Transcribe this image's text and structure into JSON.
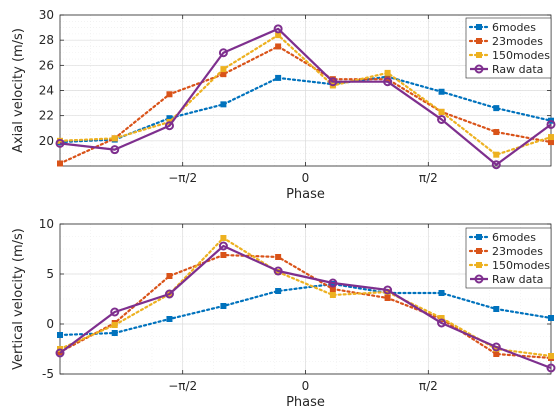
{
  "chart_data": [
    {
      "type": "line",
      "xlabel": "Phase",
      "ylabel": "Axial velocity (m/s)",
      "ylim": [
        18,
        30
      ],
      "xlim": [
        -3.14,
        3.14
      ],
      "yticks": [
        20,
        22,
        24,
        26,
        28,
        30
      ],
      "xticks": [
        {
          "value": -1.5708,
          "label": "−π/2"
        },
        {
          "value": 0,
          "label": "0"
        },
        {
          "value": 1.5708,
          "label": "π/2"
        }
      ],
      "grid": true,
      "legend": "top-right",
      "x": [
        -3.14,
        -2.44,
        -1.74,
        -1.05,
        -0.35,
        0.35,
        1.05,
        1.74,
        2.44,
        3.14
      ],
      "series": [
        {
          "name": "6modes",
          "values": [
            19.9,
            20.1,
            21.8,
            22.9,
            25.0,
            24.5,
            25.1,
            23.9,
            22.6,
            21.6
          ],
          "color": "#0072BD",
          "style": "dotted",
          "marker": "square"
        },
        {
          "name": "23modes",
          "values": [
            18.2,
            20.2,
            23.7,
            25.3,
            27.5,
            24.9,
            24.9,
            22.3,
            20.7,
            19.9
          ],
          "color": "#D95319",
          "style": "dotted",
          "marker": "square"
        },
        {
          "name": "150modes",
          "values": [
            20.0,
            20.2,
            21.5,
            25.7,
            28.4,
            24.4,
            25.4,
            22.3,
            18.9,
            20.3
          ],
          "color": "#EDB120",
          "style": "dotted",
          "marker": "square"
        },
        {
          "name": "Raw data",
          "values": [
            19.8,
            19.3,
            21.2,
            27.0,
            28.9,
            24.7,
            24.7,
            21.7,
            18.1,
            21.3
          ],
          "color": "#7E2F8E",
          "style": "solid",
          "marker": "circle"
        }
      ]
    },
    {
      "type": "line",
      "xlabel": "Phase",
      "ylabel": "Vertical velocity (m/s)",
      "ylim": [
        -5,
        10
      ],
      "xlim": [
        -3.14,
        3.14
      ],
      "yticks": [
        -5,
        0,
        5,
        10
      ],
      "xticks": [
        {
          "value": -1.5708,
          "label": "−π/2"
        },
        {
          "value": 0,
          "label": "0"
        },
        {
          "value": 1.5708,
          "label": "π/2"
        }
      ],
      "grid": true,
      "legend": "top-right",
      "x": [
        -3.14,
        -2.44,
        -1.74,
        -1.05,
        -0.35,
        0.35,
        1.05,
        1.74,
        2.44,
        3.14
      ],
      "series": [
        {
          "name": "6modes",
          "values": [
            -1.1,
            -0.9,
            0.5,
            1.8,
            3.3,
            4.0,
            3.1,
            3.1,
            1.5,
            0.6
          ],
          "color": "#0072BD",
          "style": "dotted",
          "marker": "square"
        },
        {
          "name": "23modes",
          "values": [
            -2.8,
            0.1,
            4.8,
            6.9,
            6.7,
            3.5,
            2.6,
            0.5,
            -3.0,
            -3.4
          ],
          "color": "#D95319",
          "style": "dotted",
          "marker": "square"
        },
        {
          "name": "150modes",
          "values": [
            -2.5,
            -0.1,
            3.0,
            8.6,
            5.2,
            2.9,
            3.2,
            0.6,
            -2.5,
            -3.2
          ],
          "color": "#EDB120",
          "style": "dotted",
          "marker": "square"
        },
        {
          "name": "Raw data",
          "values": [
            -2.9,
            1.2,
            3.0,
            7.8,
            5.3,
            4.1,
            3.4,
            0.1,
            -2.3,
            -4.4
          ],
          "color": "#7E2F8E",
          "style": "solid",
          "marker": "circle"
        }
      ]
    }
  ]
}
